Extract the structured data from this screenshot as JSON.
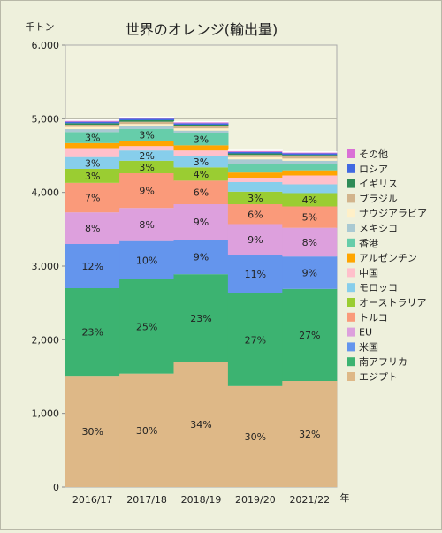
{
  "chart_data": {
    "type": "bar",
    "stacked": true,
    "title": "世界のオレンジ(輸出量)",
    "unit_label": "千トン",
    "x_unit_label": "年",
    "categories": [
      "2016/17",
      "2017/18",
      "2018/19",
      "2019/20",
      "2021/22"
    ],
    "ylim": [
      0,
      6000
    ],
    "y_ticks": [
      "0",
      "1,000",
      "2,000",
      "3,000",
      "4,000",
      "5,000",
      "6,000"
    ],
    "grid": true,
    "legend_position": "right",
    "series": [
      {
        "name": "エジプト",
        "color": "#deb887",
        "values": [
          1510,
          1540,
          1700,
          1370,
          1440
        ],
        "labels": [
          "30%",
          "30%",
          "34%",
          "30%",
          "32%"
        ]
      },
      {
        "name": "南アフリカ",
        "color": "#3cb371",
        "values": [
          1190,
          1280,
          1190,
          1260,
          1250
        ],
        "labels": [
          "23%",
          "25%",
          "23%",
          "27%",
          "27%"
        ]
      },
      {
        "name": "米国",
        "color": "#6495ed",
        "values": [
          600,
          520,
          470,
          520,
          440
        ],
        "labels": [
          "12%",
          "10%",
          "9%",
          "11%",
          "9%"
        ]
      },
      {
        "name": "EU",
        "color": "#dda0dd",
        "values": [
          430,
          450,
          480,
          420,
          390
        ],
        "labels": [
          "8%",
          "8%",
          "9%",
          "9%",
          "8%"
        ]
      },
      {
        "name": "トルコ",
        "color": "#fa9a7a",
        "values": [
          400,
          470,
          320,
          270,
          290
        ],
        "labels": [
          "7%",
          "9%",
          "6%",
          "6%",
          "5%"
        ]
      },
      {
        "name": "オーストラリア",
        "color": "#9acd32",
        "values": [
          190,
          170,
          180,
          170,
          180
        ],
        "labels": [
          "3%",
          "3%",
          "4%",
          "3%",
          "4%"
        ]
      },
      {
        "name": "モロッコ",
        "color": "#87ceeb",
        "values": [
          160,
          140,
          150,
          130,
          120
        ],
        "labels": [
          "3%",
          "2%",
          "3%",
          "",
          ""
        ]
      },
      {
        "name": "中国",
        "color": "#ffc0cb",
        "values": [
          110,
          60,
          80,
          60,
          120
        ],
        "labels": [
          "",
          "",
          "",
          "",
          ""
        ]
      },
      {
        "name": "アルゼンチン",
        "color": "#ffa500",
        "values": [
          80,
          70,
          70,
          70,
          70
        ],
        "labels": [
          "",
          "",
          "",
          "",
          ""
        ]
      },
      {
        "name": "香港",
        "color": "#66cdaa",
        "values": [
          150,
          160,
          160,
          120,
          80
        ],
        "labels": [
          "3%",
          "3%",
          "3%",
          "",
          ""
        ]
      },
      {
        "name": "メキシコ",
        "color": "#a9c9d2",
        "values": [
          40,
          40,
          40,
          60,
          50
        ],
        "labels": [
          "",
          "",
          "",
          "",
          ""
        ]
      },
      {
        "name": "サウジアラビア",
        "color": "#fff0c8",
        "values": [
          30,
          30,
          30,
          30,
          30
        ],
        "labels": [
          "",
          "",
          "",
          "",
          ""
        ]
      },
      {
        "name": "ブラジル",
        "color": "#d2b48c",
        "values": [
          30,
          30,
          30,
          30,
          30
        ],
        "labels": [
          "",
          "",
          "",
          "",
          ""
        ]
      },
      {
        "name": "イギリス",
        "color": "#2e8b57",
        "values": [
          20,
          20,
          20,
          20,
          20
        ],
        "labels": [
          "",
          "",
          "",
          "",
          ""
        ]
      },
      {
        "name": "ロシア",
        "color": "#4169e1",
        "values": [
          20,
          20,
          20,
          20,
          20
        ],
        "labels": [
          "",
          "",
          "",
          "",
          ""
        ]
      },
      {
        "name": "その他",
        "color": "#da70d6",
        "values": [
          20,
          20,
          20,
          20,
          20
        ],
        "labels": [
          "",
          "",
          "",
          "",
          ""
        ]
      }
    ]
  }
}
